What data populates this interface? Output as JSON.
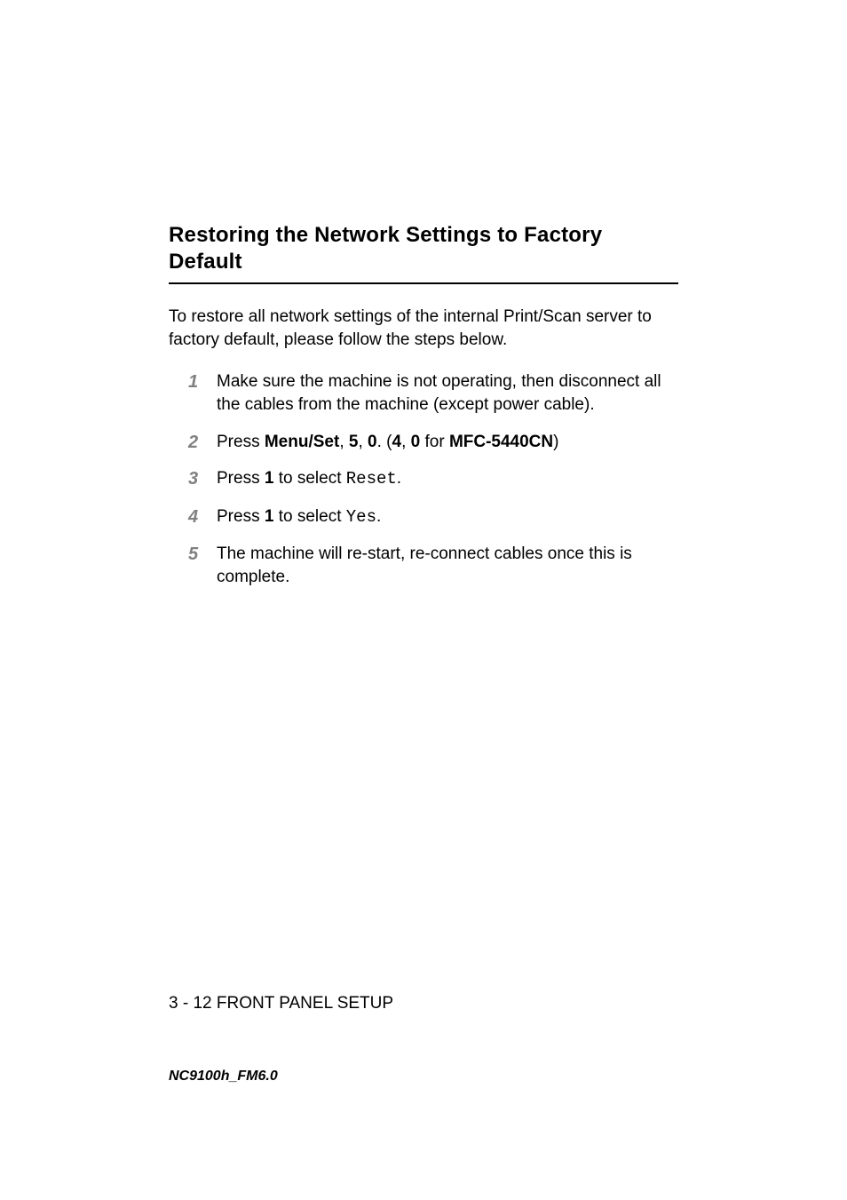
{
  "heading": "Restoring the Network Settings to Factory Default",
  "intro": "To restore all network settings of the internal Print/Scan server to factory default, please follow the steps below.",
  "steps": {
    "s1": {
      "num": "1",
      "text": "Make sure the machine is not operating, then disconnect all the cables from the machine (except power cable)."
    },
    "s2": {
      "num": "2",
      "prefix": "Press ",
      "menu_set": "Menu/Set",
      "comma1": ", ",
      "five": "5",
      "comma2": ", ",
      "zero": "0",
      "dot_open": ". (",
      "four": "4",
      "comma3": ", ",
      "zero2": "0",
      "for_txt": " for ",
      "model": "MFC-5440CN",
      "close": ")"
    },
    "s3": {
      "num": "3",
      "prefix": "Press ",
      "one": "1",
      "mid": " to select ",
      "code": "Reset",
      "end": "."
    },
    "s4": {
      "num": "4",
      "prefix": "Press ",
      "one": "1",
      "mid": " to select ",
      "code": "Yes",
      "end": "."
    },
    "s5": {
      "num": "5",
      "text": "The machine will re-start, re-connect cables once this is complete."
    }
  },
  "footer": "3 - 12 FRONT PANEL SETUP",
  "doc_code": "NC9100h_FM6.0",
  "colors": {
    "text": "#000000",
    "step_num": "#808080",
    "bg": "#ffffff",
    "rule": "#000000"
  },
  "typography": {
    "heading_size_pt": 18,
    "body_size_pt": 14,
    "footer_size_pt": 14,
    "doccode_size_pt": 12
  }
}
